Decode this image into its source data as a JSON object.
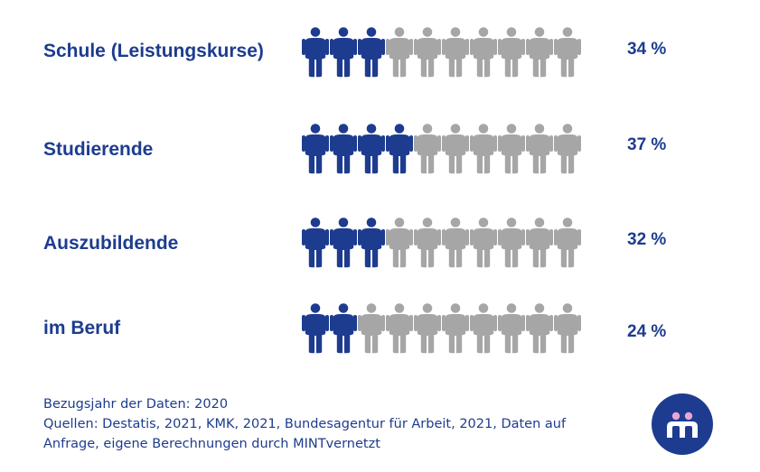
{
  "chart_data": {
    "type": "pictogram",
    "icons_per_row": 10,
    "colors": {
      "filled": "#1d3c8f",
      "empty": "#a6a6a6"
    },
    "categories": [
      "Schule (Leistungskurse)",
      "Studierende",
      "Auszubildende",
      "im Beruf"
    ],
    "values": [
      34,
      37,
      32,
      24
    ],
    "value_labels": [
      "34 %",
      "37 %",
      "32 %",
      "24 %"
    ],
    "filled_icons": [
      3,
      4,
      3,
      2
    ]
  },
  "footer": {
    "line1": "Bezugsjahr der Daten: 2020",
    "line2": "Quellen: Destatis, 2021, KMK, 2021, Bundesagentur für Arbeit, 2021, Daten auf",
    "line3": "Anfrage, eigene Berechnungen durch MINTvernetzt"
  },
  "logo": {
    "icon": "mintvernetzt-logo-icon",
    "background": "#1d3c8f"
  }
}
